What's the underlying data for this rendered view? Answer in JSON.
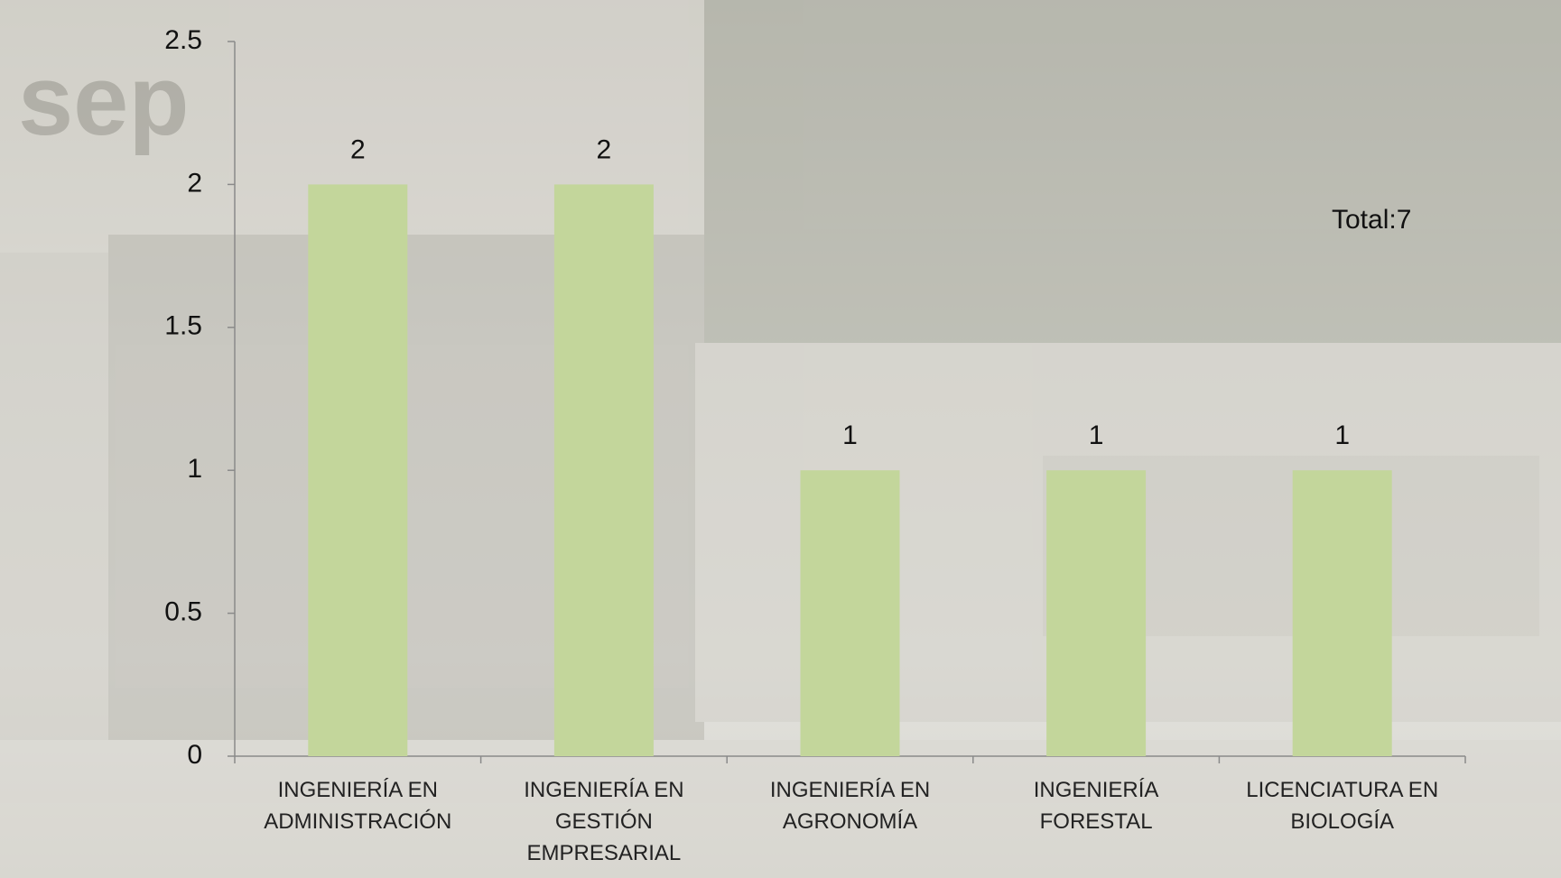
{
  "chart_data": {
    "type": "bar",
    "categories": [
      "INGENIERÍA EN ADMINISTRACIÓN",
      "INGENIERÍA EN GESTIÓN EMPRESARIAL",
      "INGENIERÍA EN AGRONOMÍA",
      "INGENIERÍA FORESTAL",
      "LICENCIATURA EN BIOLOGÍA"
    ],
    "values": [
      2,
      2,
      1,
      1,
      1
    ],
    "color": "#c3d69b",
    "ylim": [
      0,
      2.5
    ],
    "yticks": [
      0,
      0.5,
      1,
      1.5,
      2,
      2.5
    ],
    "annotation": "Total:7"
  }
}
